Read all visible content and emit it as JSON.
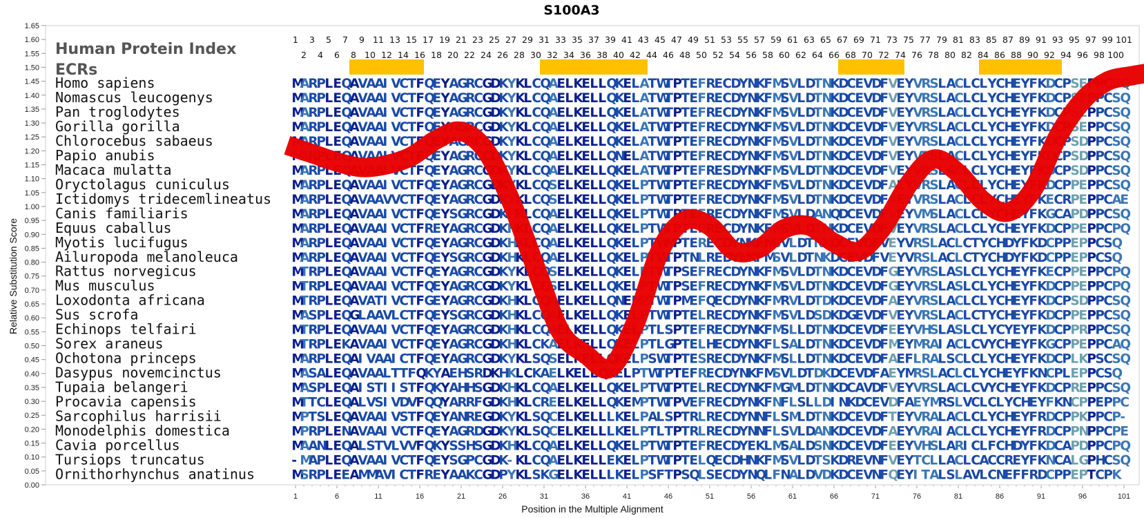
{
  "chart_data": {
    "type": "line",
    "title": "S100A3",
    "xlabel": "Position in the Multiple Alignment",
    "ylabel": "Relative Substitution Score",
    "ylim": [
      0,
      1.65
    ],
    "xlim": [
      1,
      101
    ],
    "y_ticks": [
      "0.00",
      "0.05",
      "0.10",
      "0.15",
      "0.20",
      "0.25",
      "0.30",
      "0.35",
      "0.40",
      "0.45",
      "0.50",
      "0.55",
      "0.60",
      "0.65",
      "0.70",
      "0.75",
      "0.80",
      "0.85",
      "0.90",
      "0.95",
      "1.00",
      "1.05",
      "1.10",
      "1.15",
      "1.20",
      "1.25",
      "1.30",
      "1.35",
      "1.40",
      "1.45",
      "1.50",
      "1.55",
      "1.60",
      "1.65"
    ],
    "x_ticks": [
      "1",
      "6",
      "11",
      "16",
      "21",
      "26",
      "31",
      "36",
      "41",
      "46",
      "51",
      "56",
      "61",
      "66",
      "71",
      "76",
      "81",
      "86",
      "91",
      "96",
      "101"
    ],
    "header_labels": [
      "Human Protein Index",
      "ECRs"
    ],
    "ecr_blocks": [
      [
        8,
        16
      ],
      [
        31,
        43
      ],
      [
        67,
        74
      ],
      [
        84,
        93
      ]
    ],
    "series": [
      {
        "x": [
          0,
          3,
          6,
          9,
          12,
          15,
          18,
          21,
          24,
          27,
          30,
          33,
          36,
          39,
          42,
          45,
          48,
          51,
          54,
          57,
          60,
          63,
          66,
          69,
          72,
          75,
          78,
          81,
          84,
          87,
          90,
          93,
          96,
          99,
          102,
          104
        ],
        "y": [
          1.22,
          1.19,
          1.16,
          1.14,
          1.15,
          1.18,
          1.24,
          1.27,
          1.2,
          1.02,
          0.78,
          0.55,
          0.47,
          0.42,
          0.58,
          0.84,
          0.95,
          0.93,
          0.84,
          0.85,
          0.92,
          0.93,
          0.87,
          0.84,
          0.93,
          1.08,
          1.17,
          1.12,
          1.02,
          0.98,
          1.06,
          1.25,
          1.38,
          1.45,
          1.47,
          1.48
        ]
      }
    ],
    "line_color": "#e80000",
    "ecr_color": "#ffc000",
    "residue_colors": [
      "#0b1f8c",
      "#1a4aa6",
      "#3a76b4",
      "#6f9fae"
    ]
  },
  "alignment": {
    "positions_odd": [
      "1",
      "3",
      "5",
      "7",
      "9",
      "11",
      "13",
      "15",
      "17",
      "19",
      "21",
      "23",
      "25",
      "27",
      "29",
      "31",
      "33",
      "35",
      "37",
      "39",
      "41",
      "43",
      "45",
      "47",
      "49",
      "51",
      "53",
      "55",
      "57",
      "59",
      "61",
      "63",
      "65",
      "67",
      "69",
      "71",
      "73",
      "75",
      "77",
      "79",
      "81",
      "83",
      "85",
      "87",
      "89",
      "91",
      "93",
      "95",
      "97",
      "99",
      "101"
    ],
    "positions_even": [
      "2",
      "4",
      "6",
      "8",
      "10",
      "12",
      "14",
      "16",
      "18",
      "20",
      "22",
      "24",
      "26",
      "28",
      "30",
      "32",
      "34",
      "36",
      "38",
      "40",
      "42",
      "44",
      "46",
      "48",
      "50",
      "52",
      "54",
      "56",
      "58",
      "60",
      "62",
      "64",
      "66",
      "68",
      "70",
      "72",
      "74",
      "76",
      "78",
      "80",
      "82",
      "84",
      "86",
      "88",
      "90",
      "92",
      "94",
      "96",
      "98",
      "100"
    ],
    "rows": [
      {
        "species": "Homo sapiens",
        "seq": "MARPLEQAVAAIVCTFQEYAGRCGDKYKLCQAELKELLQKELATWTPTEFRECDYNKFMSVLDTNKDCEVDFVEYVRSLACLCLYCHEYFKDCPSEPPCSQ"
      },
      {
        "species": "Nomascus leucogenys",
        "seq": "MARPLEQAVAAIVCTFQEYAGRCGDKYKLCQAELKELLQKELATWTPTEFRECDYNKFMSVLDTNKDCEVDFVEYVRSLACLCLYCHEYFKDCPSEPPCSQ"
      },
      {
        "species": "Pan troglodytes",
        "seq": "MARPLEQAVAAIVCTFQEYAGRCGDKYKLCQAELKELLQKELATWTPTEFRECDYNKFMSVLDTNKDCEVDFVEYVRSLACLCLYCHEYFKDCPSEPPCSQ"
      },
      {
        "species": "Gorilla gorilla",
        "seq": "MARPLEQAVAAIVCTFQEYAGRCGDKYKLCQAELKELLQKELATWTPTEFRECDYNKFMSVLDTNKDCEVDFVEYVRSLACLCLYCHEYFKDCPSEPPCSQ"
      },
      {
        "species": "Chlorocebus sabaeus",
        "seq": "MARPLEQAVAAIVCTFQEYAGRCGDKYKLCQAELKELLQKELATWTPTEFRECDYNKFMSVLDTNKDCEVDFVEYVRSLACLCLYCHEYFKDCPSDPPCSQ"
      },
      {
        "species": "Papio anubis",
        "seq": "MARPLEQAVAAIVCTFQEYAGRCGDKYKLCQAELKELLQNELATWTPTEFRECDYNKFMSVLDTNKDCEVDFVEYVRSLACLCLYCHEYFKDCPSDPPCSQ"
      },
      {
        "species": "Macaca mulatta",
        "seq": "MARPLEQAVAAIVCTFQEYAGRCGDKYKLCQAELKELLQKELATWTPTEFRESDYNKFMSVLDTNKDCEVDFVEYVRSLACLCLYCHEYFKDCPSDPPCSQ"
      },
      {
        "species": "Oryctolagus cuniculus",
        "seq": "MARPLEQAVAAIVCTFQEYAGRCGDKYKLCQSELKELLQKELPTWTPTEFRECDYNKFMSVLDTNKDCEVDFAEYVRSLACLCLYCHEYFKDCPPEPPCSQ"
      },
      {
        "species": "Ictidomys tridecemlineatus",
        "seq": "MARPLEQAVAAVVCTFQEYAGRCGDKYKLCQSELKELLQKELPTWTPTEFRECDYNKFMSVLDTNKDCEVDFAEYVRSLACLCLYCHEYFKECRPEPPCAE"
      },
      {
        "species": "Canis familiaris",
        "seq": "MARPLEQAVAAIVCTFQEYSGRCGDKHKLCQAELKELLQKELPTWTPTEFRECDYNKFMSVLDANQDCEVDFVEYVMSLACLCLYCHEYFKGCAPDPPCSQ"
      },
      {
        "species": "Equus caballus",
        "seq": "MARPLEQAVAAIVCTFREYAGRCGDKHKLCQAELKELLQKELPTWTPTEFRECDYNKFMSVLDTNKDCEVDFVEYVRSLACLCLYCHEYFKDCPPEPPCPQ"
      },
      {
        "species": "Myotis lucifugus",
        "seq": "MARPLEQAVAAIVCTFQEYAGRCGDKHKLCQAELKELLQKELPTWMPTERECDYNKFMSVLDTNKDCEVDFVEYVRSLACLCTYCHDYFKDCPPEPPCSQ"
      },
      {
        "species": "Ailuropoda melanoleuca",
        "seq": "MARPLEQAVAAIVCTFQEYSGRCGDKHKLCQAELKELLQKELPTWTPTNLREDYNKFMSVLDTNKDCEVDFVEYVRSLACLCTYCHDYFKDCPPEPPCSQ"
      },
      {
        "species": "Rattus norvegicus",
        "seq": "MTRPLEQAVAAIVCTFQEYAGRCGDKYKLCQSELKELLQKELPTWTPSEFRECDYNKFMSVLDTNKDCEVDFGEYVRSLASLCLYCHEYFKECPPEPPCPQ"
      },
      {
        "species": "Mus musculus",
        "seq": "MTRPLEQAVAAIVCTFQEYAGRCGDKYKLCQSELKELLQKELPTWTPSEFRECDYNKFMSVLDTNKDCEVDFGEYVRSLASLCLYCHEYFKDCPPEPPCPQ"
      },
      {
        "species": "Loxodonta africana",
        "seq": "MTRPLEQAVATIVCTFGEYAGRCGDKHKLCQAELKELLQNEMPTWTPMEFQECDYNKFMRVLDTDKDCEVDFAEYVRSLACLCLYCHEYFKDCPSDPPCSQ"
      },
      {
        "species": "Sus scrofa",
        "seq": "MASPLEQGLAAVLCTFQEYSGRCGDKHKLCQAELKELLQKELPTWTPTELRECDYNKFMSVLDSDKDGEVDFVEYVRSLACLCTYCHEYFKDCPPEPPCSQ"
      },
      {
        "species": "Echinops telfairi",
        "seq": "MTRPLEQAVAAIVCTFQEYAGRCGDKHKLCQAELKELLQKELPTLSPTEFRECDYNKFMSLLDTNKDCEVDFEEYVHSLASLCLYCYEYFKDCPPRPPCSQ"
      },
      {
        "species": "Sorex araneus",
        "seq": "MTRPLEKAVAAIVCTFQEYAGRCGDKHKLCKAELKELLQKELPTLGPTELHECDYNKFLSALDTNKDCEVDFMEYMRAIACLCVYCHEYFKGCPPEPPCAQ"
      },
      {
        "species": "Ochotona princeps",
        "seq": "MARPLEQAIVAAICTFQEYAGRCGDKYKLSQSELKELLQKELPSWTPTESRECDYNKFMSLLDTNKDCEVDFAEFLRALSCLCLYCHEYFKDCPLKPSCSQ"
      },
      {
        "species": "Dasypus novemcinctus",
        "seq": "MASALEQAVAALTTFQKYAEHSRDKHKLCKAELKELLQKELPTWTPTEFRECDYNKFMSVLDTDKDCEVDFAEYMRSLACLCLYCHEYFKNCPLEPPCSQ"
      },
      {
        "species": "Tupaia belangeri",
        "seq": "MASPLEQAISTIISTFQKYAHHSGDKHKLCQAELKELLQKELPTWTPTELRECDYNKFMGMLDTNKDCAVDFVEYVRSLACLCVYCHEYFKDCPREPPCSQ"
      },
      {
        "species": "Procavia capensis",
        "seq": "MTTCLEQALVSIVDVFQQYARRFGDKHKLCREELKELLQKEMPTWTPVEFRECDYNKFNFLSLLDINKDCEVDFAEYMRSLVCLCLYCHEYFKNCPPEPPCSQ"
      },
      {
        "species": "Sarcophilus harrisii",
        "seq": "MPTSLEQAVAAIVSTFQEYANREGDKYKLSQCELKELLLKELPALSPTRLRECDYNNFLSMLDTNKDCEVDFTEYVRALACLCLYCHEYFRDCPPKPPCP-"
      },
      {
        "species": "Monodelphis domestica",
        "seq": "MPRPLENAVAAIVCTFQEYAGRDGDKYKLSQCELKELLLKELPTLTPTRLRECDYNNFLSVLDANKDCEVDFAEYVRAIACLCLYCHEYFRDCPPNPPCPE"
      },
      {
        "species": "Cavia porcellus",
        "seq": "MAANLEQALSTVLVVFQKYSSHSGDKHKLCQAELKELLQKELPTWTPTEFRECDYEKLMSALDSNKDCEVDFEEYVHSLARICLFCHDYFKDCAPDPPCPQ"
      },
      {
        "species": "Tursiops truncatus",
        "seq": "-MAPLEQAVAAIVCTFQEYSGPCGDK-KLCQAELKELLEKELPTWTPTELQECDHNKFMSVLDTSKDREVNFVEYTCLLACLCACCREYFKNCALGPHCSQ"
      },
      {
        "species": "Ornithorhynchus anatinus",
        "seq": "MSRPLEEAMMAVICTFREYAAKCGDPYKLSKGELKELLLKELPSFTPSQLSECDYNQLFNALDVDKDCEVNFQEYITALSLAVLCNEFFRDCPPEPTCPK"
      }
    ]
  }
}
